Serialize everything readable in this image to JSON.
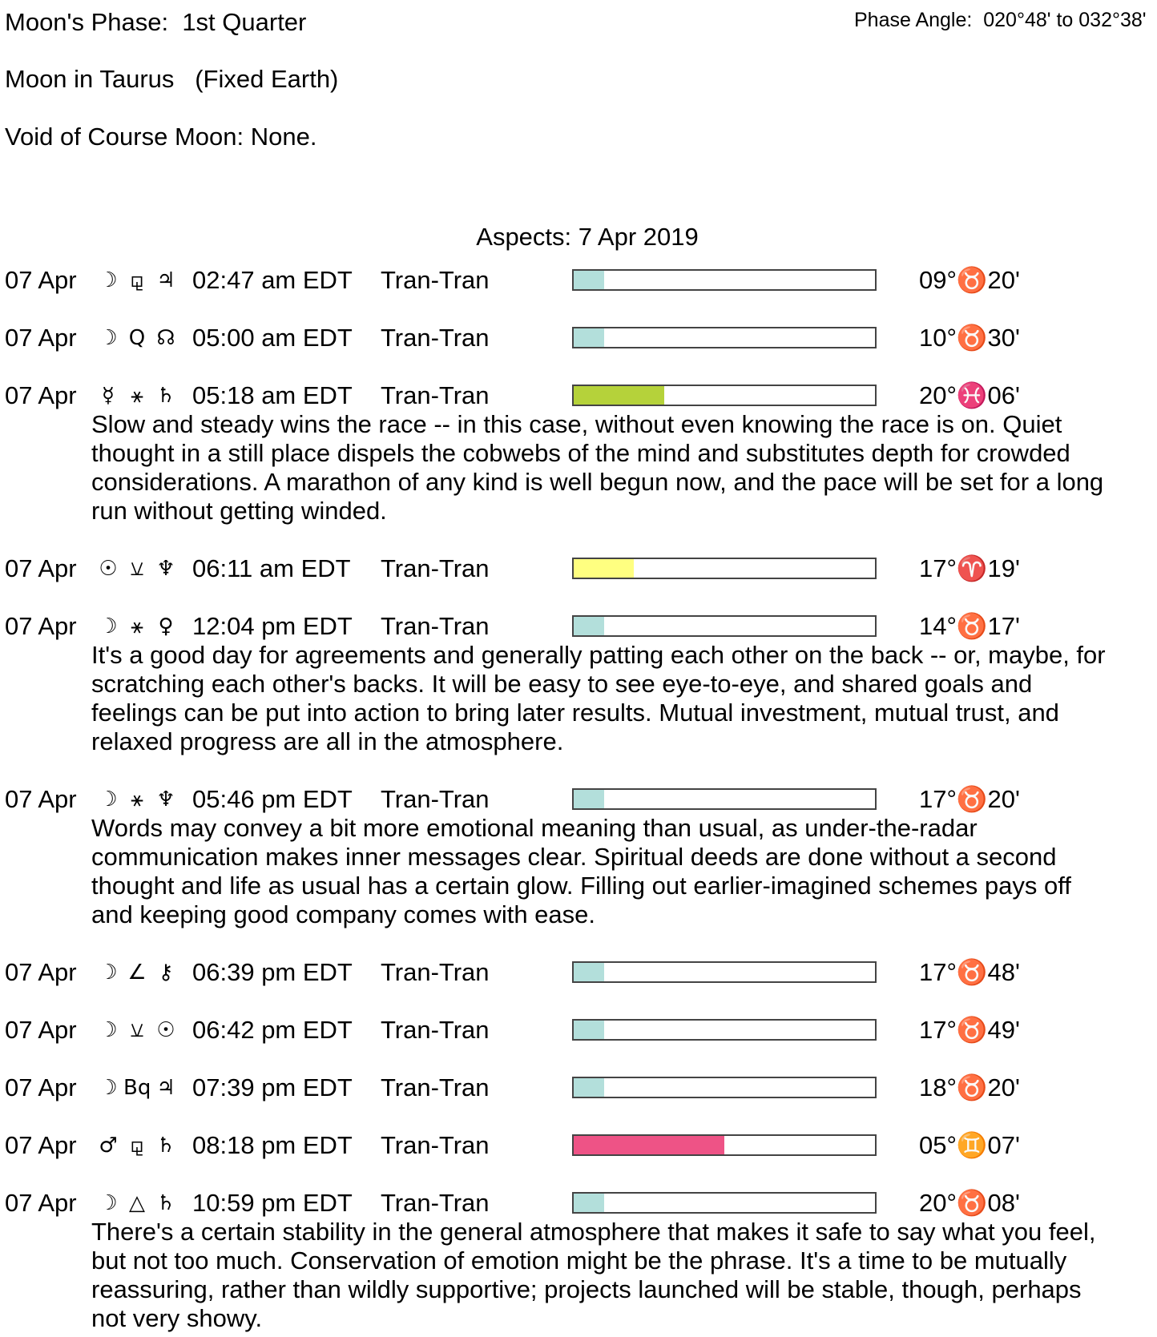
{
  "header": {
    "moon_phase": "Moon's Phase:  1st Quarter",
    "moon_sign": "Moon in Taurus   (Fixed Earth)",
    "void_of_course": "Void of Course Moon: None.",
    "phase_angle": "Phase Angle:  020°48' to 032°38'"
  },
  "aspects_title": "Aspects: 7 Apr 2019",
  "colors": {
    "teal": "#b3dfdb",
    "green": "#b5d23a",
    "yellow": "#ffff80",
    "pink": "#ee5386"
  },
  "entries": [
    {
      "date": "07 Apr",
      "p1": "☽",
      "aspect": "⚼",
      "p2": "♃",
      "time": "02:47 am EDT",
      "type": "Tran-Tran",
      "strength": 0.1,
      "color": "#b3dfdb",
      "position": "09°♉20'",
      "desc": []
    },
    {
      "date": "07 Apr",
      "p1": "☽",
      "aspect": "Q",
      "p2": "☊",
      "time": "05:00 am EDT",
      "type": "Tran-Tran",
      "strength": 0.1,
      "color": "#b3dfdb",
      "position": "10°♉30'",
      "desc": []
    },
    {
      "date": "07 Apr",
      "p1": "☿",
      "aspect": "⚹",
      "p2": "♄",
      "time": "05:18 am EDT",
      "type": "Tran-Tran",
      "strength": 0.3,
      "color": "#b5d23a",
      "position": "20°♓06'",
      "desc": [
        "Slow and steady wins the race -- in this case, without even knowing the race is on. Quiet",
        "thought in a still place dispels the cobwebs of the mind and substitutes depth for crowded",
        "considerations. A marathon of any kind is well begun now, and the pace will be set for a long",
        "run without getting winded."
      ]
    },
    {
      "date": "07 Apr",
      "p1": "☉",
      "aspect": "⚺",
      "p2": "♆",
      "time": "06:11 am EDT",
      "type": "Tran-Tran",
      "strength": 0.2,
      "color": "#ffff80",
      "position": "17°♈19'",
      "desc": []
    },
    {
      "date": "07 Apr",
      "p1": "☽",
      "aspect": "⚹",
      "p2": "♀",
      "time": "12:04 pm EDT",
      "type": "Tran-Tran",
      "strength": 0.1,
      "color": "#b3dfdb",
      "position": "14°♉17'",
      "desc": [
        "It's a good day for agreements and generally patting each other on the back -- or, maybe, for",
        "scratching each other's backs. It will be easy to see eye-to-eye, and shared goals and",
        "feelings can be put into action to bring later results. Mutual investment, mutual trust, and",
        "relaxed progress are all in the atmosphere."
      ]
    },
    {
      "date": "07 Apr",
      "p1": "☽",
      "aspect": "⚹",
      "p2": "♆",
      "time": "05:46 pm EDT",
      "type": "Tran-Tran",
      "strength": 0.1,
      "color": "#b3dfdb",
      "position": "17°♉20'",
      "desc": [
        "Words may convey a bit more emotional meaning than usual, as under-the-radar",
        "communication makes inner messages clear. Spiritual deeds are done without a second",
        "thought and life as usual has a certain glow. Filling out earlier-imagined schemes pays off",
        "and keeping good company comes with ease."
      ]
    },
    {
      "date": "07 Apr",
      "p1": "☽",
      "aspect": "∠",
      "p2": "⚷",
      "time": "06:39 pm EDT",
      "type": "Tran-Tran",
      "strength": 0.1,
      "color": "#b3dfdb",
      "position": "17°♉48'",
      "desc": []
    },
    {
      "date": "07 Apr",
      "p1": "☽",
      "aspect": "⚺",
      "p2": "☉",
      "time": "06:42 pm EDT",
      "type": "Tran-Tran",
      "strength": 0.1,
      "color": "#b3dfdb",
      "position": "17°♉49'",
      "desc": []
    },
    {
      "date": "07 Apr",
      "p1": "☽",
      "aspect": "Bq",
      "p2": "♃",
      "time": "07:39 pm EDT",
      "type": "Tran-Tran",
      "strength": 0.1,
      "color": "#b3dfdb",
      "position": "18°♉20'",
      "desc": []
    },
    {
      "date": "07 Apr",
      "p1": "♂",
      "aspect": "⚼",
      "p2": "♄",
      "time": "08:18 pm EDT",
      "type": "Tran-Tran",
      "strength": 0.5,
      "color": "#ee5386",
      "position": "05°♊07'",
      "desc": []
    },
    {
      "date": "07 Apr",
      "p1": "☽",
      "aspect": "△",
      "p2": "♄",
      "time": "10:59 pm EDT",
      "type": "Tran-Tran",
      "strength": 0.1,
      "color": "#b3dfdb",
      "position": "20°♉08'",
      "desc": [
        "There's a certain stability in the general atmosphere that makes it safe to say what you feel,",
        "but not too much. Conservation of emotion might be the phrase. It's a time to be mutually",
        "reassuring, rather than wildly supportive; projects launched will be stable, though, perhaps",
        "not very showy."
      ]
    }
  ]
}
